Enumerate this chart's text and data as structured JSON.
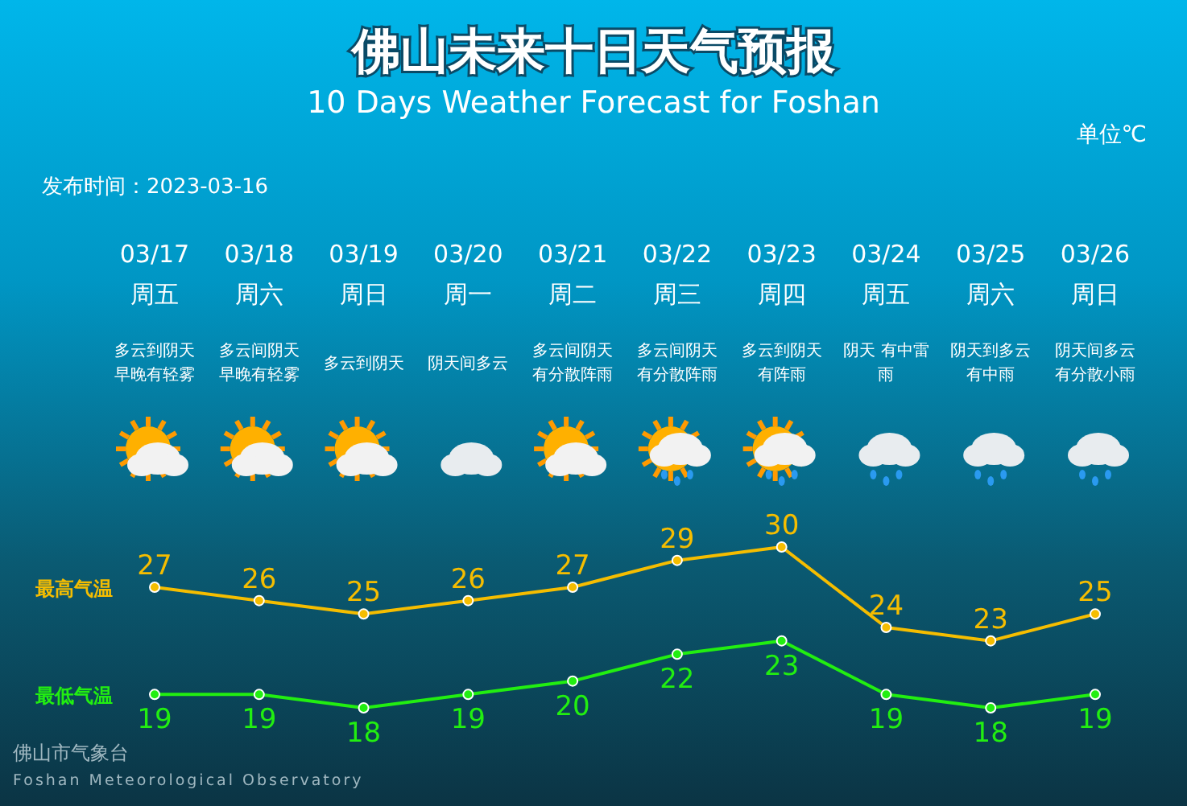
{
  "chart_data": {
    "type": "line",
    "title": "佛山未来十日天气预报",
    "subtitle": "10 Days Weather Forecast for Foshan",
    "categories": [
      "03/17周五多云到阴天早晚有轻雾",
      "03/18周六多云间阴天早晚有轻雾",
      "03/19周日多云到阴天",
      "03/20周一阴天间多云",
      "03/21周二多云间阴天有分散阵雨",
      "03/22周三多云间阴天有分散阵雨",
      "03/23周四多云到阴天有阵雨",
      "03/24周五阴天 有中雷雨",
      "03/25周六阴天到多云有中雨",
      "03/26周日阴天间多云有分散小雨"
    ],
    "series": [
      {
        "name": "最高气温",
        "color": "#f5bd00",
        "values": [
          27,
          26,
          25,
          26,
          27,
          29,
          30,
          24,
          23,
          25
        ]
      },
      {
        "name": "最低气温",
        "color": "#22ee11",
        "values": [
          19,
          19,
          18,
          19,
          20,
          22,
          23,
          19,
          18,
          19
        ]
      }
    ],
    "data_labels": true,
    "marker": "circle",
    "line_style": "solid",
    "annotations": [
      "单位℃",
      "发布时间：2023-03-16",
      "佛山市气象台",
      "Foshan Meteorological Observatory"
    ]
  }
}
